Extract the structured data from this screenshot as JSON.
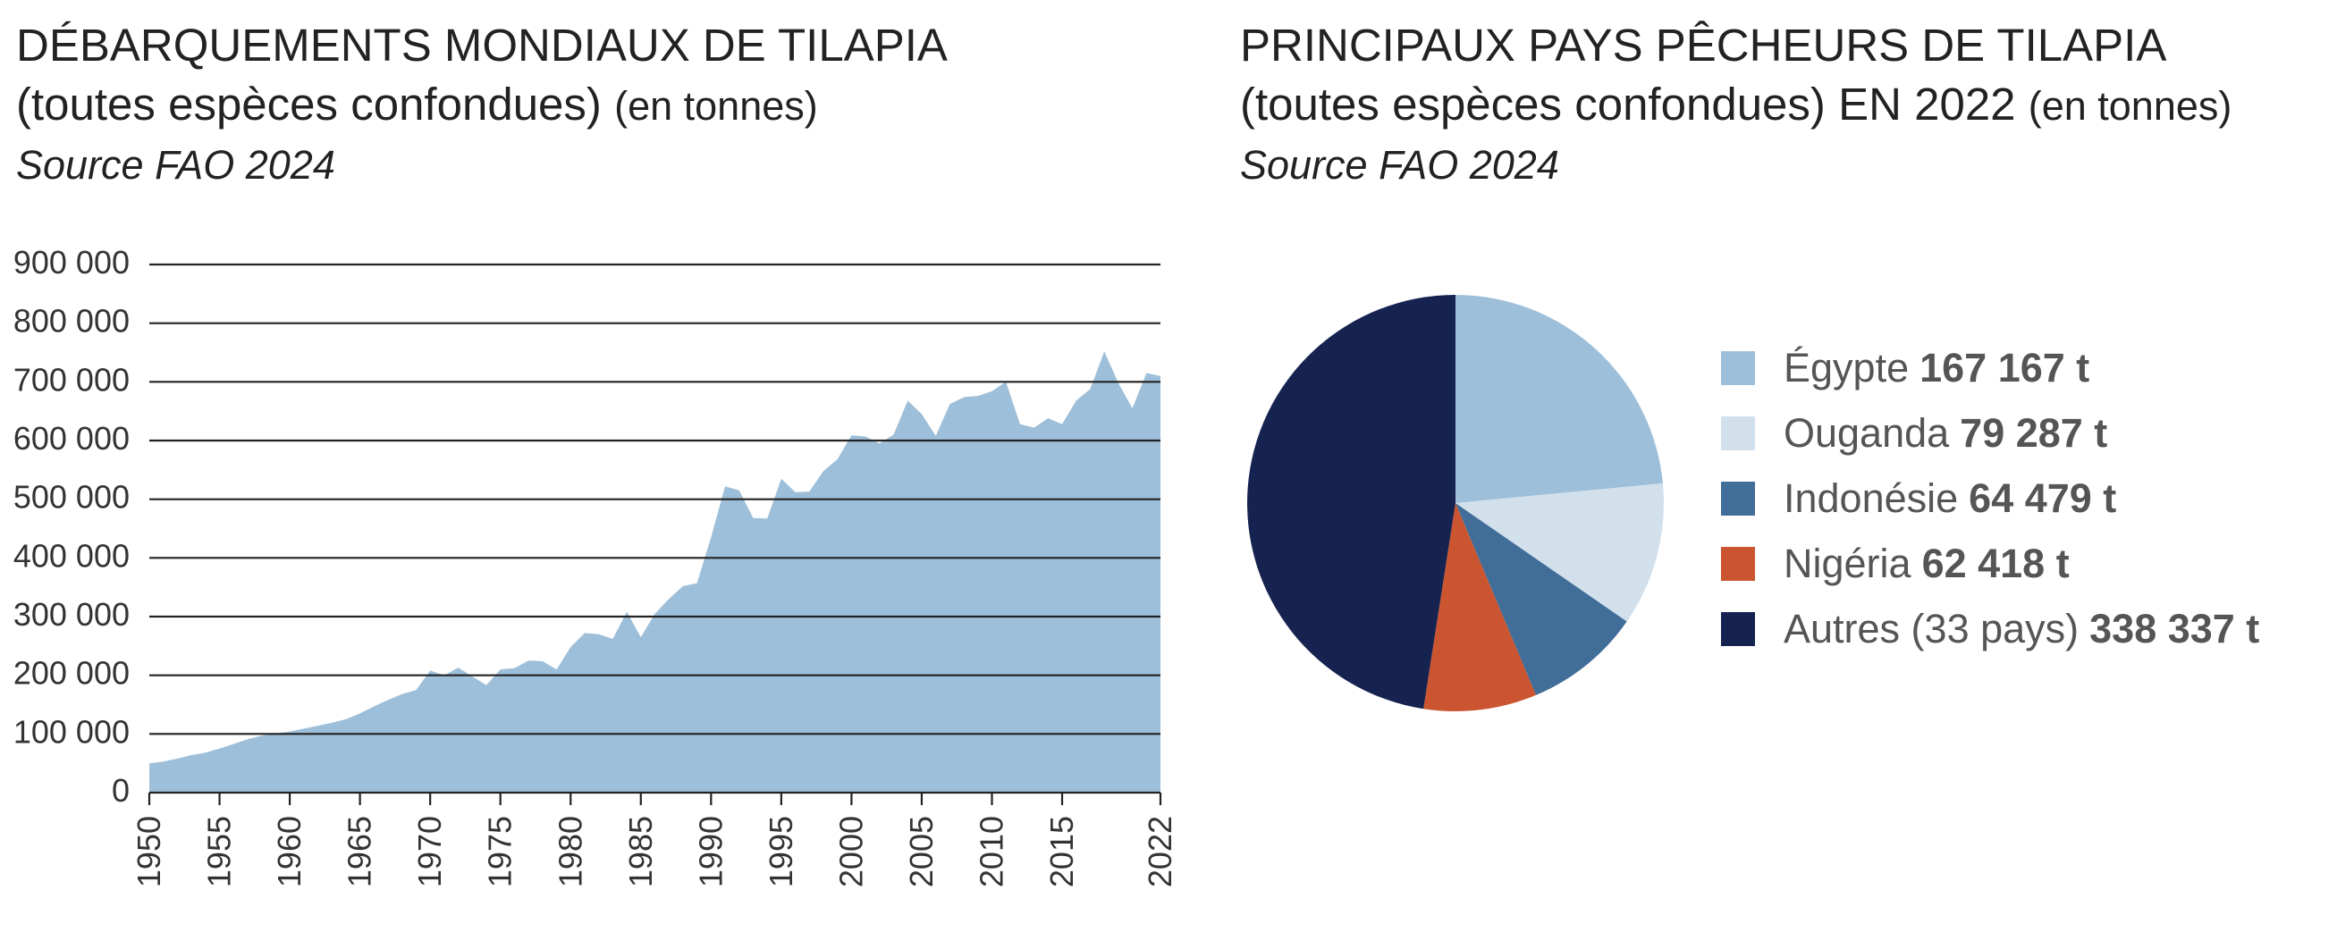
{
  "left": {
    "title_line1": "DÉBARQUEMENTS MONDIAUX DE TILAPIA",
    "title_line2": "(toutes espèces confondues)",
    "title_unit": "(en tonnes)",
    "source": "Source FAO 2024"
  },
  "right": {
    "title_line1": "PRINCIPAUX PAYS PÊCHEURS DE TILAPIA",
    "title_line2": "(toutes espèces confondues) EN 2022",
    "title_unit": "(en tonnes)",
    "source": "Source FAO 2024"
  },
  "chart_data": [
    {
      "type": "area",
      "title": "DÉBARQUEMENTS MONDIAUX DE TILAPIA (toutes espèces confondues) (en tonnes)",
      "xlabel": "",
      "ylabel": "",
      "ylim": [
        0,
        900000
      ],
      "y_ticks": [
        0,
        100000,
        200000,
        300000,
        400000,
        500000,
        600000,
        700000,
        800000,
        900000
      ],
      "y_tick_labels": [
        "0",
        "100 000",
        "200 000",
        "300 000",
        "400 000",
        "500 000",
        "600 000",
        "700 000",
        "800 000",
        "900 000"
      ],
      "x_ticks": [
        1950,
        1955,
        1960,
        1965,
        1970,
        1975,
        1980,
        1985,
        1990,
        1995,
        2000,
        2005,
        2010,
        2015,
        2022
      ],
      "grid": true,
      "color": "#9ebfd9",
      "x": [
        1950,
        1951,
        1952,
        1953,
        1954,
        1955,
        1956,
        1957,
        1958,
        1959,
        1960,
        1961,
        1962,
        1963,
        1964,
        1965,
        1966,
        1967,
        1968,
        1969,
        1970,
        1971,
        1972,
        1973,
        1974,
        1975,
        1976,
        1977,
        1978,
        1979,
        1980,
        1981,
        1982,
        1983,
        1984,
        1985,
        1986,
        1987,
        1988,
        1989,
        1990,
        1991,
        1992,
        1993,
        1994,
        1995,
        1996,
        1997,
        1998,
        1999,
        2000,
        2001,
        2002,
        2003,
        2004,
        2005,
        2006,
        2007,
        2008,
        2009,
        2010,
        2011,
        2012,
        2013,
        2014,
        2015,
        2016,
        2017,
        2018,
        2019,
        2020,
        2021,
        2022
      ],
      "values": [
        50000,
        53000,
        58000,
        64000,
        68000,
        75000,
        83000,
        91000,
        97000,
        101000,
        104000,
        109000,
        114000,
        119000,
        125000,
        135000,
        147000,
        158000,
        168000,
        175000,
        208000,
        200000,
        213000,
        198000,
        183000,
        210000,
        212000,
        225000,
        224000,
        210000,
        248000,
        272000,
        270000,
        262000,
        308000,
        265000,
        305000,
        330000,
        352000,
        357000,
        435000,
        522000,
        515000,
        468000,
        467000,
        535000,
        512000,
        513000,
        548000,
        568000,
        609000,
        607000,
        595000,
        610000,
        668000,
        645000,
        608000,
        662000,
        674000,
        676000,
        684000,
        700000,
        628000,
        622000,
        638000,
        628000,
        668000,
        688000,
        752000,
        698000,
        655000,
        715000,
        710000
      ]
    },
    {
      "type": "pie",
      "title": "PRINCIPAUX PAYS PÊCHEURS DE TILAPIA (toutes espèces confondues) EN 2022 (en tonnes)",
      "categories": [
        "Égypte",
        "Ouganda",
        "Indonésie",
        "Nigéria",
        "Autres (33 pays)"
      ],
      "values": [
        167167,
        79287,
        64479,
        62418,
        338337
      ],
      "value_labels": [
        "167 167 t",
        "79 287 t",
        "64 479 t",
        "62 418 t",
        "338 337 t"
      ],
      "colors": [
        "#9ebfd9",
        "#d2e0ec",
        "#416d99",
        "#cb5530",
        "#162250"
      ],
      "legend_position": "right"
    }
  ]
}
